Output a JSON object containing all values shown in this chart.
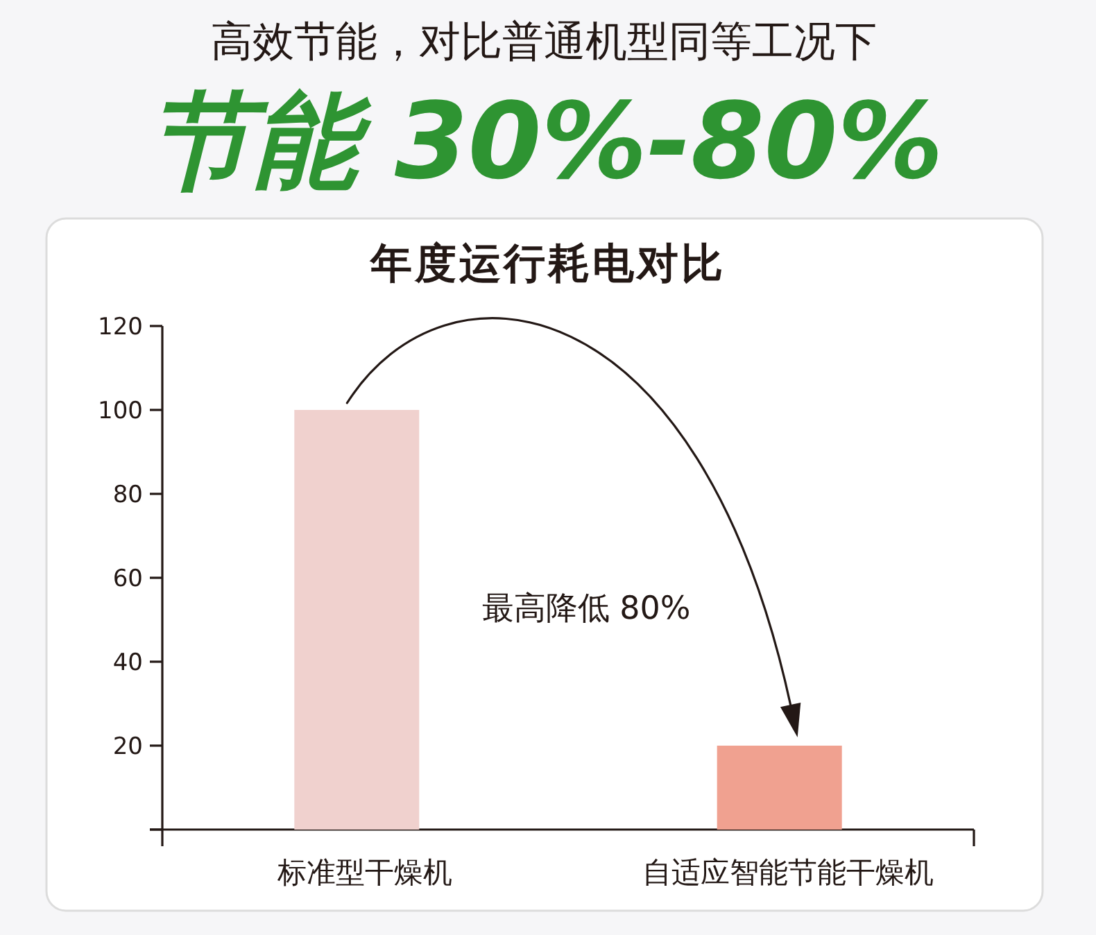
{
  "chart_data": {
    "type": "bar",
    "title": "年度运行耗电对比",
    "categories": [
      "标准型干燥机",
      "自适应智能节能干燥机"
    ],
    "values": [
      100,
      20
    ],
    "colors": [
      "#f0d1ce",
      "#f0a190"
    ],
    "ylim": [
      0,
      120
    ],
    "yticks": [
      {
        "value": 0,
        "label": null
      },
      20,
      40,
      60,
      80,
      100,
      120
    ],
    "annotations": [
      "高效节能，对比普通机型同等工况下",
      "节能 30%-80%",
      "最高降低 80%"
    ]
  }
}
